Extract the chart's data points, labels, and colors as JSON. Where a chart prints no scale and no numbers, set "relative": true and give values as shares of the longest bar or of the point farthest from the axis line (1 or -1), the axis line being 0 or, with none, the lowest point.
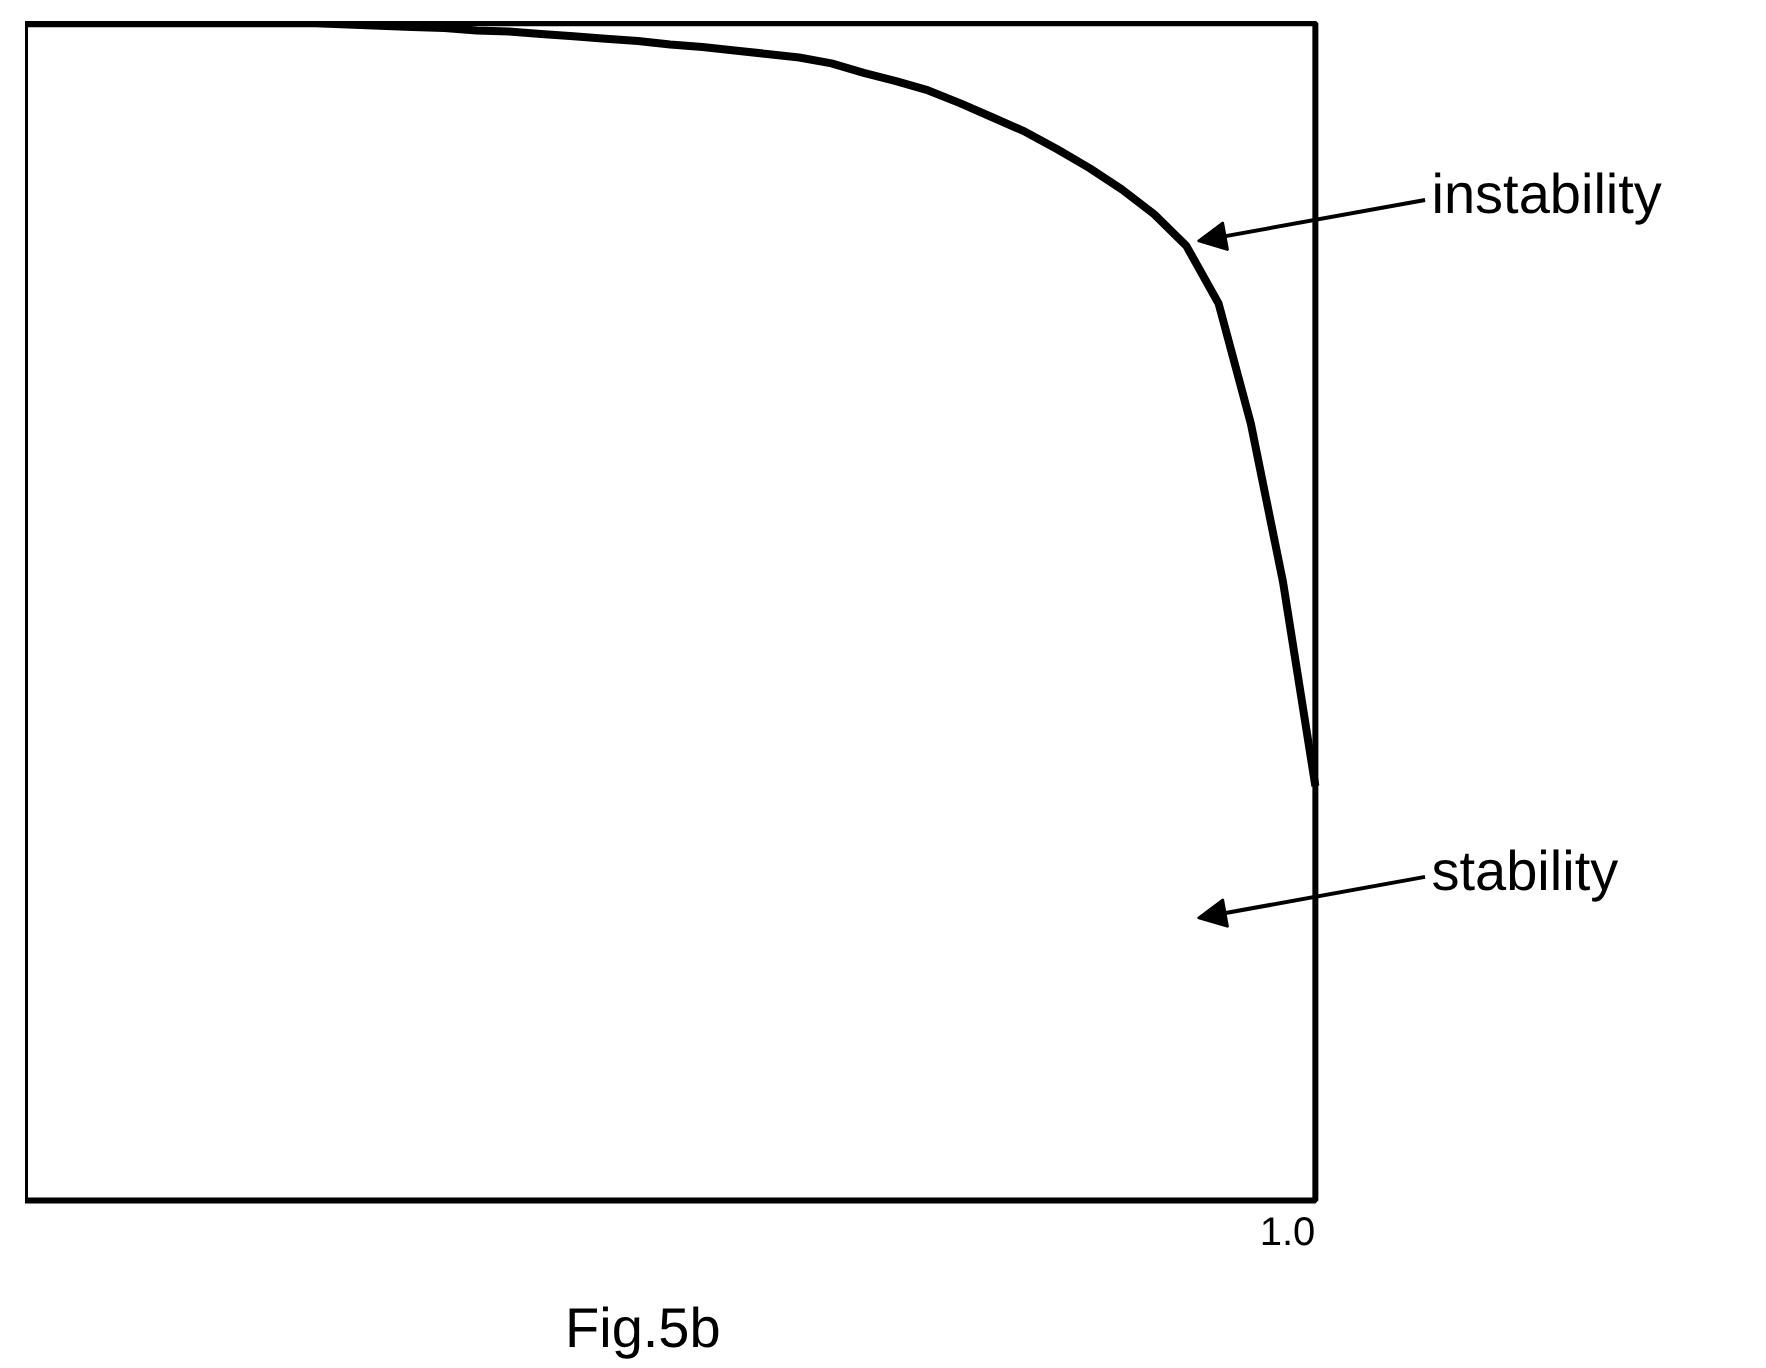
{
  "chart_data": {
    "type": "line",
    "relative": true,
    "categories": [
      null,
      null,
      null,
      null,
      null,
      null,
      null,
      null,
      null,
      null,
      null,
      null,
      null,
      null,
      null,
      null,
      null,
      null,
      null,
      null,
      null,
      null,
      null,
      null,
      null,
      null,
      null,
      null,
      null,
      null,
      null,
      null,
      null,
      null,
      null,
      null,
      null,
      null,
      null,
      null,
      null
    ],
    "series": [
      {
        "color": "#000000",
        "values": [
          1,
          1,
          1,
          1,
          1,
          1,
          1,
          1,
          1,
          1,
          0.999,
          0.998,
          0.997,
          0.996,
          0.994,
          0.993,
          0.991,
          0.989,
          0.987,
          0.985,
          0.982,
          0.98,
          0.977,
          0.974,
          0.971,
          0.966,
          0.958,
          0.951,
          0.943,
          0.932,
          0.92,
          0.908,
          0.893,
          0.877,
          0.859,
          0.838,
          0.811,
          0.762,
          0.66,
          0.525,
          0.352
        ]
      }
    ],
    "grid": false,
    "annotations": [
      "instability",
      "stability",
      "1.0",
      "Fig.5b"
    ]
  }
}
